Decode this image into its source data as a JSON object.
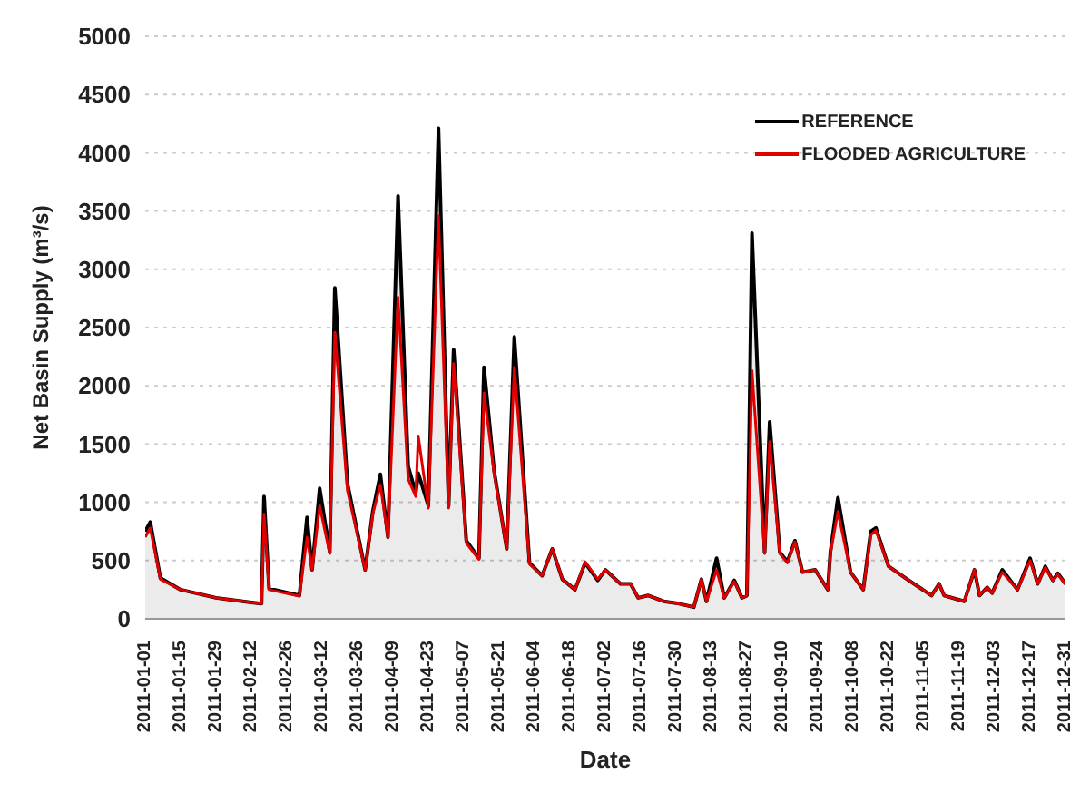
{
  "chart_data": {
    "type": "line",
    "xlabel": "Date",
    "ylabel": "Net Basin Supply (m³/s)",
    "x": [
      "2011-01-01",
      "2011-01-03",
      "2011-01-07",
      "2011-01-15",
      "2011-01-29",
      "2011-02-12",
      "2011-02-16",
      "2011-02-17",
      "2011-02-19",
      "2011-03-03",
      "2011-03-06",
      "2011-03-08",
      "2011-03-11",
      "2011-03-15",
      "2011-03-17",
      "2011-03-22",
      "2011-03-29",
      "2011-04-01",
      "2011-04-04",
      "2011-04-07",
      "2011-04-11",
      "2011-04-15",
      "2011-04-18",
      "2011-04-19",
      "2011-04-23",
      "2011-04-27",
      "2011-05-01",
      "2011-05-03",
      "2011-05-08",
      "2011-05-13",
      "2011-05-15",
      "2011-05-19",
      "2011-05-24",
      "2011-05-27",
      "2011-06-02",
      "2011-06-07",
      "2011-06-11",
      "2011-06-15",
      "2011-06-20",
      "2011-06-24",
      "2011-06-29",
      "2011-07-02",
      "2011-07-08",
      "2011-07-12",
      "2011-07-15",
      "2011-07-19",
      "2011-07-25",
      "2011-07-30",
      "2011-08-06",
      "2011-08-09",
      "2011-08-11",
      "2011-08-15",
      "2011-08-18",
      "2011-08-22",
      "2011-08-25",
      "2011-08-27",
      "2011-08-29",
      "2011-09-03",
      "2011-09-05",
      "2011-09-09",
      "2011-09-12",
      "2011-09-15",
      "2011-09-18",
      "2011-09-23",
      "2011-09-28",
      "2011-09-29",
      "2011-10-02",
      "2011-10-07",
      "2011-10-12",
      "2011-10-15",
      "2011-10-17",
      "2011-10-22",
      "2011-10-30",
      "2011-11-08",
      "2011-11-11",
      "2011-11-13",
      "2011-11-21",
      "2011-11-25",
      "2011-11-27",
      "2011-11-30",
      "2011-12-02",
      "2011-12-06",
      "2011-12-12",
      "2011-12-17",
      "2011-12-20",
      "2011-12-23",
      "2011-12-26",
      "2011-12-28",
      "2011-12-31"
    ],
    "series": [
      {
        "name": "REFERENCE",
        "type": "area",
        "color": "#000000",
        "values": [
          750,
          830,
          350,
          250,
          180,
          140,
          130,
          1050,
          260,
          200,
          870,
          420,
          1120,
          570,
          2840,
          1160,
          420,
          920,
          1240,
          700,
          3630,
          1310,
          1080,
          1250,
          970,
          4210,
          970,
          2310,
          670,
          520,
          2160,
          1270,
          600,
          2420,
          480,
          370,
          600,
          340,
          250,
          480,
          330,
          420,
          300,
          300,
          180,
          200,
          150,
          135,
          100,
          340,
          150,
          520,
          180,
          330,
          180,
          200,
          3310,
          570,
          1690,
          570,
          490,
          670,
          400,
          420,
          250,
          570,
          1040,
          400,
          250,
          750,
          780,
          450,
          330,
          200,
          300,
          200,
          150,
          420,
          200,
          270,
          220,
          420,
          250,
          520,
          300,
          450,
          330,
          390,
          300
        ]
      },
      {
        "name": "FLOODED AGRICULTURE",
        "color": "#e00000",
        "values": [
          700,
          780,
          340,
          250,
          180,
          140,
          130,
          900,
          250,
          195,
          700,
          420,
          970,
          560,
          2460,
          1100,
          420,
          900,
          1150,
          700,
          2760,
          1200,
          1050,
          1570,
          950,
          3460,
          950,
          2190,
          650,
          510,
          1940,
          1250,
          600,
          2160,
          470,
          370,
          600,
          340,
          250,
          490,
          340,
          420,
          300,
          300,
          180,
          200,
          150,
          135,
          100,
          340,
          150,
          420,
          180,
          320,
          180,
          200,
          2130,
          560,
          1520,
          560,
          480,
          660,
          400,
          420,
          250,
          560,
          920,
          400,
          250,
          720,
          760,
          450,
          330,
          200,
          300,
          200,
          150,
          420,
          200,
          270,
          220,
          400,
          250,
          500,
          300,
          440,
          330,
          380,
          300
        ]
      }
    ],
    "xlim": [
      "2011-01-01",
      "2011-12-31"
    ],
    "xticks": [
      "2011-01-01",
      "2011-01-15",
      "2011-01-29",
      "2011-02-12",
      "2011-02-26",
      "2011-03-12",
      "2011-03-26",
      "2011-04-09",
      "2011-04-23",
      "2011-05-07",
      "2011-05-21",
      "2011-06-04",
      "2011-06-18",
      "2011-07-02",
      "2011-07-16",
      "2011-07-30",
      "2011-08-13",
      "2011-08-27",
      "2011-09-10",
      "2011-09-24",
      "2011-10-08",
      "2011-10-22",
      "2011-11-05",
      "2011-11-19",
      "2011-12-03",
      "2011-12-17",
      "2011-12-31"
    ],
    "ylim": [
      0,
      5000
    ],
    "yticks": [
      0,
      500,
      1000,
      1500,
      2000,
      2500,
      3000,
      3500,
      4000,
      4500,
      5000
    ],
    "grid": "y",
    "legend": "top right",
    "marker": "none",
    "line_style": "solid"
  }
}
